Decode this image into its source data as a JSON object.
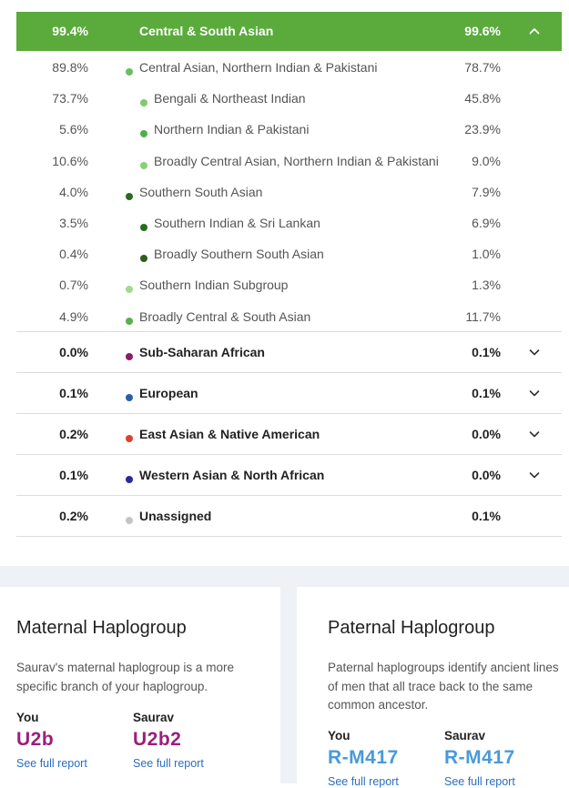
{
  "header": {
    "you": "99.4%",
    "label": "Central & South Asian",
    "other": "99.6%"
  },
  "sub_rows": [
    {
      "you": "89.8%",
      "label": "Central Asian, Northern Indian & Pakistani",
      "other": "78.7%",
      "color": "#6cbd62",
      "indent": 0
    },
    {
      "you": "73.7%",
      "label": "Bengali & Northeast Indian",
      "other": "45.8%",
      "color": "#7dcc6a",
      "indent": 1
    },
    {
      "you": "5.6%",
      "label": "Northern Indian & Pakistani",
      "other": "23.9%",
      "color": "#4fb04b",
      "indent": 1
    },
    {
      "you": "10.6%",
      "label": "Broadly Central Asian, Northern Indian & Pakistani",
      "other": "9.0%",
      "color": "#89cf7a",
      "indent": 1
    },
    {
      "you": "4.0%",
      "label": "Southern South Asian",
      "other": "7.9%",
      "color": "#2d6a1f",
      "indent": 0
    },
    {
      "you": "3.5%",
      "label": "Southern Indian & Sri Lankan",
      "other": "6.9%",
      "color": "#2b6a21",
      "indent": 1
    },
    {
      "you": "0.4%",
      "label": "Broadly Southern South Asian",
      "other": "1.0%",
      "color": "#2a5e1c",
      "indent": 1
    },
    {
      "you": "0.7%",
      "label": "Southern Indian Subgroup",
      "other": "1.3%",
      "color": "#9fdc8a",
      "indent": 0
    },
    {
      "you": "4.9%",
      "label": "Broadly Central & South Asian",
      "other": "11.7%",
      "color": "#56b24a",
      "indent": 0
    }
  ],
  "main_rows": [
    {
      "you": "0.0%",
      "label": "Sub-Saharan African",
      "other": "0.1%",
      "color": "#8b1a6b",
      "expandable": true
    },
    {
      "you": "0.1%",
      "label": "European",
      "other": "0.1%",
      "color": "#2b5ea7",
      "expandable": true
    },
    {
      "you": "0.2%",
      "label": "East Asian & Native American",
      "other": "0.0%",
      "color": "#d9432b",
      "expandable": true
    },
    {
      "you": "0.1%",
      "label": "Western Asian & North African",
      "other": "0.0%",
      "color": "#2a2a9a",
      "expandable": true
    },
    {
      "you": "0.2%",
      "label": "Unassigned",
      "other": "0.1%",
      "color": "#c4c4c4",
      "expandable": false
    }
  ],
  "maternal": {
    "title": "Maternal Haplogroup",
    "desc": "Saurav's maternal haplogroup is a more specific branch of your haplogroup.",
    "you_label": "You",
    "you_value": "U2b",
    "other_label": "Saurav",
    "other_value": "U2b2",
    "link": "See full report",
    "color": "#9b1f7c"
  },
  "paternal": {
    "title": "Paternal Haplogroup",
    "desc": "Paternal haplogroups identify ancient lines of men that all trace back to the same common ancestor.",
    "you_label": "You",
    "you_value": "R-M417",
    "other_label": "Saurav",
    "other_value": "R-M417",
    "link": "See full report",
    "color": "#4a9ad8"
  }
}
